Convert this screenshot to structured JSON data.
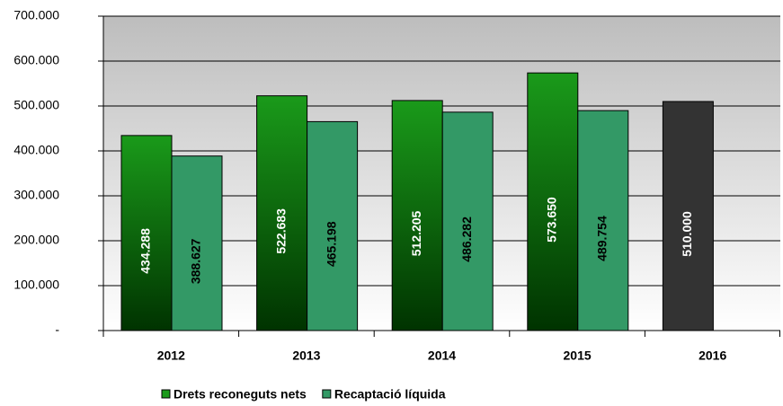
{
  "chart_data": {
    "type": "bar",
    "categories": [
      "2012",
      "2013",
      "2014",
      "2015",
      "2016"
    ],
    "series": [
      {
        "name": "Drets reconeguts nets",
        "color": "#1a9a1a",
        "colors": [
          "#1a9a1a",
          "#1a9a1a",
          "#1a9a1a",
          "#1a9a1a",
          "#333333"
        ],
        "values": [
          434288,
          522683,
          512205,
          573650,
          510000
        ],
        "value_labels": [
          "434.288",
          "522.683",
          "512.205",
          "573.650",
          "510.000"
        ]
      },
      {
        "name": "Recaptació líquida",
        "color": "#339966",
        "values": [
          388627,
          465198,
          486282,
          489754,
          null
        ],
        "value_labels": [
          "388.627",
          "465.198",
          "486.282",
          "489.754",
          null
        ]
      }
    ],
    "ylim": [
      0,
      700000
    ],
    "yticks": [
      {
        "value": 0,
        "label": "-"
      },
      {
        "value": 100000,
        "label": "100.000"
      },
      {
        "value": 200000,
        "label": "200.000"
      },
      {
        "value": 300000,
        "label": "300.000"
      },
      {
        "value": 400000,
        "label": "400.000"
      },
      {
        "value": 500000,
        "label": "500.000"
      },
      {
        "value": 600000,
        "label": "600.000"
      },
      {
        "value": 700000,
        "label": "700.000"
      }
    ],
    "grid": true,
    "legend": "bottom"
  }
}
